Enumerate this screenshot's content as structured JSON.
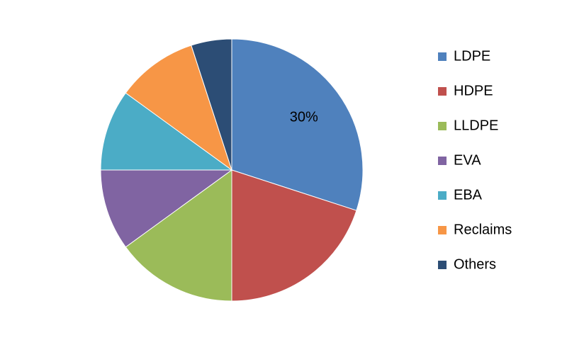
{
  "chart_data": {
    "type": "pie",
    "categories": [
      "LDPE",
      "HDPE",
      "LLDPE",
      "EVA",
      "EBA",
      "Reclaims",
      "Others"
    ],
    "values": [
      30,
      20,
      15,
      10,
      10,
      10,
      5
    ],
    "value_labels": [
      "30%",
      null,
      null,
      null,
      null,
      null,
      null
    ],
    "colors": [
      "#4f81bd",
      "#c0504d",
      "#9bbb59",
      "#8064a2",
      "#4bacc6",
      "#f79646",
      "#2c4d75"
    ],
    "legend": "right"
  }
}
